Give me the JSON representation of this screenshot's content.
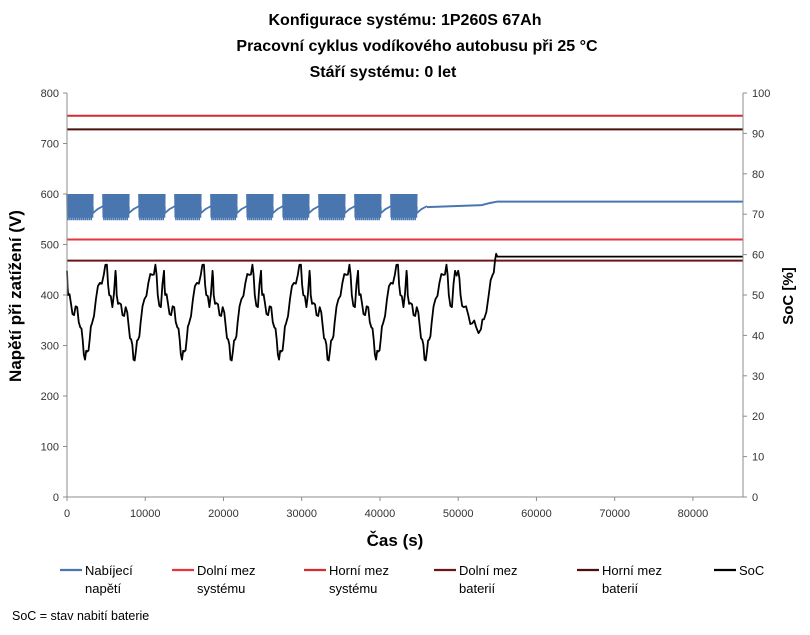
{
  "chart_data": {
    "type": "line",
    "title": [
      "Konfigurace systému: 1P260S 67Ah",
      "Pracovní cyklus vodíkového autobusu při 25 °C",
      "Stáří systému: 0 let"
    ],
    "xlabel": "Čas (s)",
    "ylabel": "Napětí při zatížení (V)",
    "y2label": "SoC [%]",
    "xlim": [
      0,
      86400
    ],
    "ylim": [
      0,
      800
    ],
    "y2lim": [
      0,
      100
    ],
    "xticks": [
      "0",
      "10000",
      "20000",
      "30000",
      "40000",
      "50000",
      "60000",
      "70000",
      "80000"
    ],
    "yticks": [
      "0",
      "100",
      "200",
      "300",
      "400",
      "500",
      "600",
      "700",
      "800"
    ],
    "y2ticks": [
      "0",
      "10",
      "20",
      "30",
      "40",
      "50",
      "60",
      "70",
      "80",
      "90",
      "100"
    ],
    "grid": false,
    "legend_position": "bottom",
    "series": [
      {
        "name": "Nabíjecí napětí",
        "axis": "left",
        "color": "#4a76b0",
        "cycle": {
          "count": 10,
          "period": 4600,
          "start": 0,
          "band": {
            "start_offset": 0,
            "duration": 3300,
            "low": 548,
            "high": 600
          },
          "rest": [
            [
              3300,
              562
            ],
            [
              3900,
              570
            ],
            [
              4600,
              576
            ]
          ]
        },
        "after": [
          [
            46000,
            574
          ],
          [
            53000,
            578
          ],
          [
            54000,
            582
          ],
          [
            55000,
            585
          ],
          [
            86400,
            585
          ]
        ]
      },
      {
        "name": "Dolní mez systému",
        "axis": "left",
        "color": "#e8343f",
        "value": 510
      },
      {
        "name": "Horní mez systému",
        "axis": "left",
        "color": "#d42a32",
        "value": 755
      },
      {
        "name": "Dolní mez baterií",
        "axis": "left",
        "color": "#6e1414",
        "value": 468
      },
      {
        "name": "Horní mez baterií",
        "axis": "left",
        "color": "#4c0e0e",
        "value": 728
      },
      {
        "name": "SoC",
        "axis": "right",
        "color": "#000000",
        "cycle": {
          "count": 8,
          "period": 6200,
          "start": 0,
          "points": [
            [
              0,
              56
            ],
            [
              150,
              50
            ],
            [
              500,
              48
            ],
            [
              900,
              45
            ],
            [
              1300,
              47
            ],
            [
              1700,
              42
            ],
            [
              2000,
              39
            ],
            [
              2300,
              34
            ],
            [
              2600,
              36
            ],
            [
              2900,
              39
            ],
            [
              3200,
              43
            ],
            [
              3700,
              49
            ],
            [
              4200,
              53
            ],
            [
              4700,
              55
            ],
            [
              5100,
              57.5
            ],
            [
              5400,
              50
            ],
            [
              5800,
              47
            ],
            [
              6200,
              56
            ]
          ]
        },
        "after": [
          [
            50000,
            56
          ],
          [
            50300,
            50
          ],
          [
            50700,
            47
          ],
          [
            51300,
            45
          ],
          [
            51800,
            43
          ],
          [
            52300,
            42
          ],
          [
            52900,
            41.5
          ],
          [
            53300,
            44
          ],
          [
            53900,
            50
          ],
          [
            54400,
            55
          ],
          [
            54700,
            58.5
          ],
          [
            55000,
            59.5
          ],
          [
            86400,
            59.5
          ]
        ]
      }
    ]
  },
  "legend": [
    {
      "line1": "Nabíjecí",
      "line2": "napětí",
      "color": "#4a76b0"
    },
    {
      "line1": "Dolní mez",
      "line2": "systému",
      "color": "#e8343f"
    },
    {
      "line1": "Horní mez",
      "line2": "systému",
      "color": "#d42a32"
    },
    {
      "line1": "Dolní mez",
      "line2": "baterií",
      "color": "#6e1414"
    },
    {
      "line1": "Horní mez",
      "line2": "baterií",
      "color": "#4c0e0e"
    },
    {
      "line1": "SoC",
      "line2": "",
      "color": "#000000"
    }
  ],
  "footnote": "SoC = stav nabití baterie"
}
